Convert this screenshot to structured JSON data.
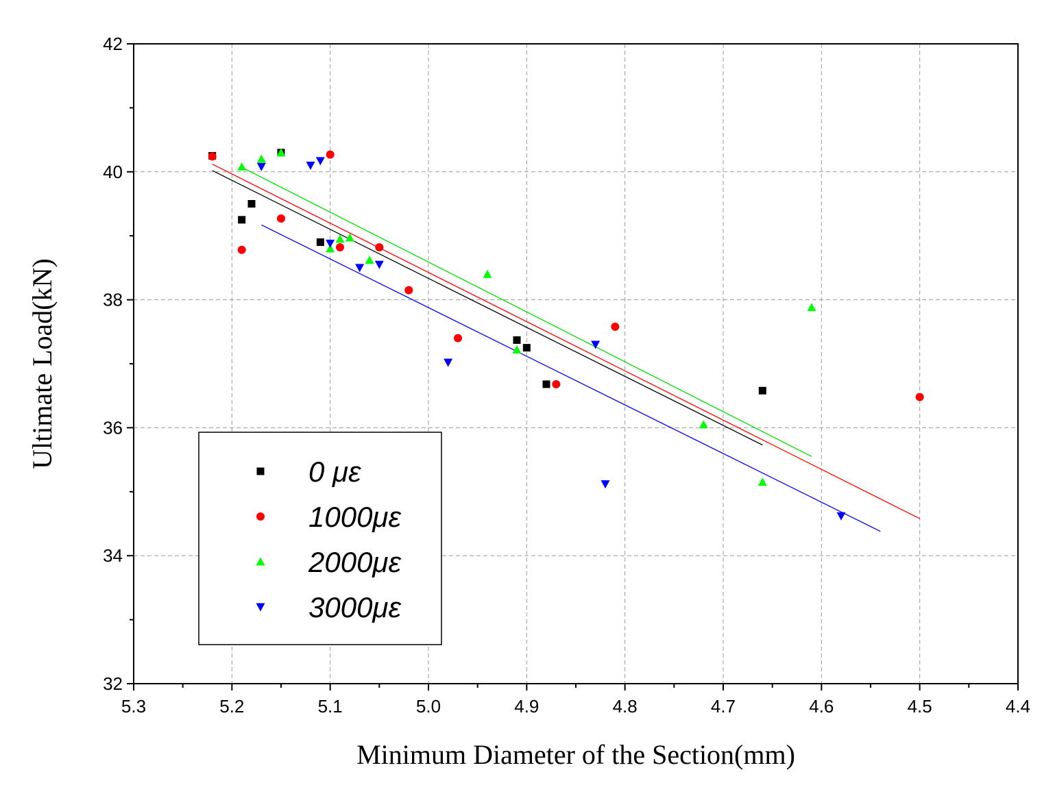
{
  "chart_data": {
    "type": "scatter",
    "title": "",
    "xlabel": "Minimum Diameter of the Section(mm)",
    "ylabel": "Ultimate Load(kN)",
    "xlim": [
      5.3,
      4.4
    ],
    "ylim": [
      32,
      42
    ],
    "x_reversed": true,
    "grid": true,
    "legend_position": "bottom-left",
    "x_ticks": [
      5.3,
      5.2,
      5.1,
      5.0,
      4.9,
      4.8,
      4.7,
      4.6,
      4.5,
      4.4
    ],
    "x_tick_labels": [
      "5.3",
      "5.2",
      "5.1",
      "5.0",
      "4.9",
      "4.8",
      "4.7",
      "4.6",
      "4.5",
      "4.4"
    ],
    "y_ticks": [
      32,
      34,
      36,
      38,
      40,
      42
    ],
    "y_tick_labels": [
      "32",
      "34",
      "36",
      "38",
      "40",
      "42"
    ],
    "series": [
      {
        "name": "0   με",
        "color": "#000000",
        "marker": "square",
        "points": [
          [
            5.22,
            40.25
          ],
          [
            5.19,
            39.25
          ],
          [
            5.18,
            39.5
          ],
          [
            5.15,
            40.3
          ],
          [
            5.11,
            38.9
          ],
          [
            4.91,
            37.37
          ],
          [
            4.9,
            37.25
          ],
          [
            4.88,
            36.68
          ],
          [
            4.66,
            36.58
          ]
        ],
        "fit": [
          [
            5.22,
            40.02
          ],
          [
            4.66,
            35.73
          ]
        ]
      },
      {
        "name": "1000με",
        "color": "#ff0000",
        "marker": "circle",
        "points": [
          [
            5.22,
            40.24
          ],
          [
            5.19,
            38.78
          ],
          [
            5.15,
            39.27
          ],
          [
            5.1,
            40.27
          ],
          [
            5.09,
            38.82
          ],
          [
            5.05,
            38.82
          ],
          [
            5.02,
            38.15
          ],
          [
            4.97,
            37.4
          ],
          [
            4.87,
            36.68
          ],
          [
            4.81,
            37.58
          ],
          [
            4.5,
            36.48
          ]
        ],
        "fit": [
          [
            5.22,
            40.12
          ],
          [
            4.5,
            34.58
          ]
        ]
      },
      {
        "name": "2000με",
        "color": "#00ff00",
        "marker": "triangle-up",
        "points": [
          [
            5.19,
            40.08
          ],
          [
            5.17,
            40.2
          ],
          [
            5.15,
            40.3
          ],
          [
            5.1,
            38.8
          ],
          [
            5.09,
            38.95
          ],
          [
            5.08,
            38.97
          ],
          [
            5.06,
            38.62
          ],
          [
            4.94,
            38.4
          ],
          [
            4.91,
            37.22
          ],
          [
            4.72,
            36.05
          ],
          [
            4.66,
            35.15
          ],
          [
            4.61,
            37.88
          ]
        ],
        "fit": [
          [
            5.19,
            40.07
          ],
          [
            4.61,
            35.55
          ]
        ]
      },
      {
        "name": "3000με",
        "color": "#0000ff",
        "marker": "triangle-down",
        "points": [
          [
            5.17,
            40.08
          ],
          [
            5.12,
            40.1
          ],
          [
            5.11,
            40.17
          ],
          [
            5.1,
            38.88
          ],
          [
            5.07,
            38.5
          ],
          [
            5.05,
            38.55
          ],
          [
            4.98,
            37.02
          ],
          [
            4.83,
            37.3
          ],
          [
            4.82,
            35.12
          ],
          [
            4.58,
            34.62
          ]
        ],
        "fit": [
          [
            5.17,
            39.17
          ],
          [
            4.54,
            34.38
          ]
        ]
      }
    ]
  }
}
